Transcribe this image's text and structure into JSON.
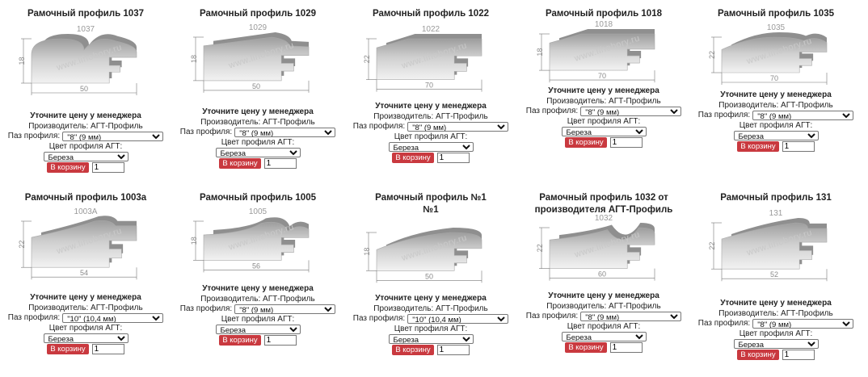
{
  "common": {
    "note": "Уточните цену у менеджера",
    "manufacturer": "Производитель: АГТ-Профиль",
    "groove_label": "Паз профиля:",
    "color_label": "Цвет профиля АГТ:",
    "color_value": "Береза",
    "cart_label": "В корзину",
    "qty": "1",
    "watermark": "www.lihobory.ru"
  },
  "cards": [
    {
      "title": "Рамочный профиль 1037",
      "title2": "",
      "code": "1037",
      "height": "18",
      "width": "50",
      "groove": "\"8\" (9 мм)"
    },
    {
      "title": "Рамочный профиль 1029",
      "title2": "",
      "code": "1029",
      "height": "18",
      "width": "50",
      "groove": "\"8\" (9 мм)"
    },
    {
      "title": "Рамочный профиль 1022",
      "title2": "",
      "code": "1022",
      "height": "22",
      "width": "70",
      "groove": "\"8\" (9 мм)"
    },
    {
      "title": "Рамочный профиль 1018",
      "title2": "",
      "code": "1018",
      "height": "18",
      "width": "70",
      "groove": "\"8\" (9 мм)"
    },
    {
      "title": "Рамочный профиль 1035",
      "title2": "",
      "code": "1035",
      "height": "22",
      "width": "70",
      "groove": "\"8\" (9 мм)"
    },
    {
      "title": "Рамочный профиль 1003а",
      "title2": "",
      "code": "1003A",
      "height": "22",
      "width": "54",
      "groove": "\"10\" (10,4 мм)"
    },
    {
      "title": "Рамочный профиль 1005",
      "title2": "",
      "code": "1005",
      "height": "18",
      "width": "56",
      "groove": "\"8\" (9 мм)"
    },
    {
      "title": "Рамочный профиль №1",
      "title2": "№1",
      "code": "",
      "height": "18",
      "width": "50",
      "groove": "\"10\" (10,4 мм)"
    },
    {
      "title": "Рамочный профиль 1032 от",
      "title2": "производителя АГТ-Профиль",
      "code": "1032",
      "height": "22",
      "width": "60",
      "groove": "\"8\" (9 мм)"
    },
    {
      "title": "Рамочный профиль 131",
      "title2": "",
      "code": "131",
      "height": "22",
      "width": "52",
      "groove": "\"8\" (9 мм)"
    }
  ]
}
